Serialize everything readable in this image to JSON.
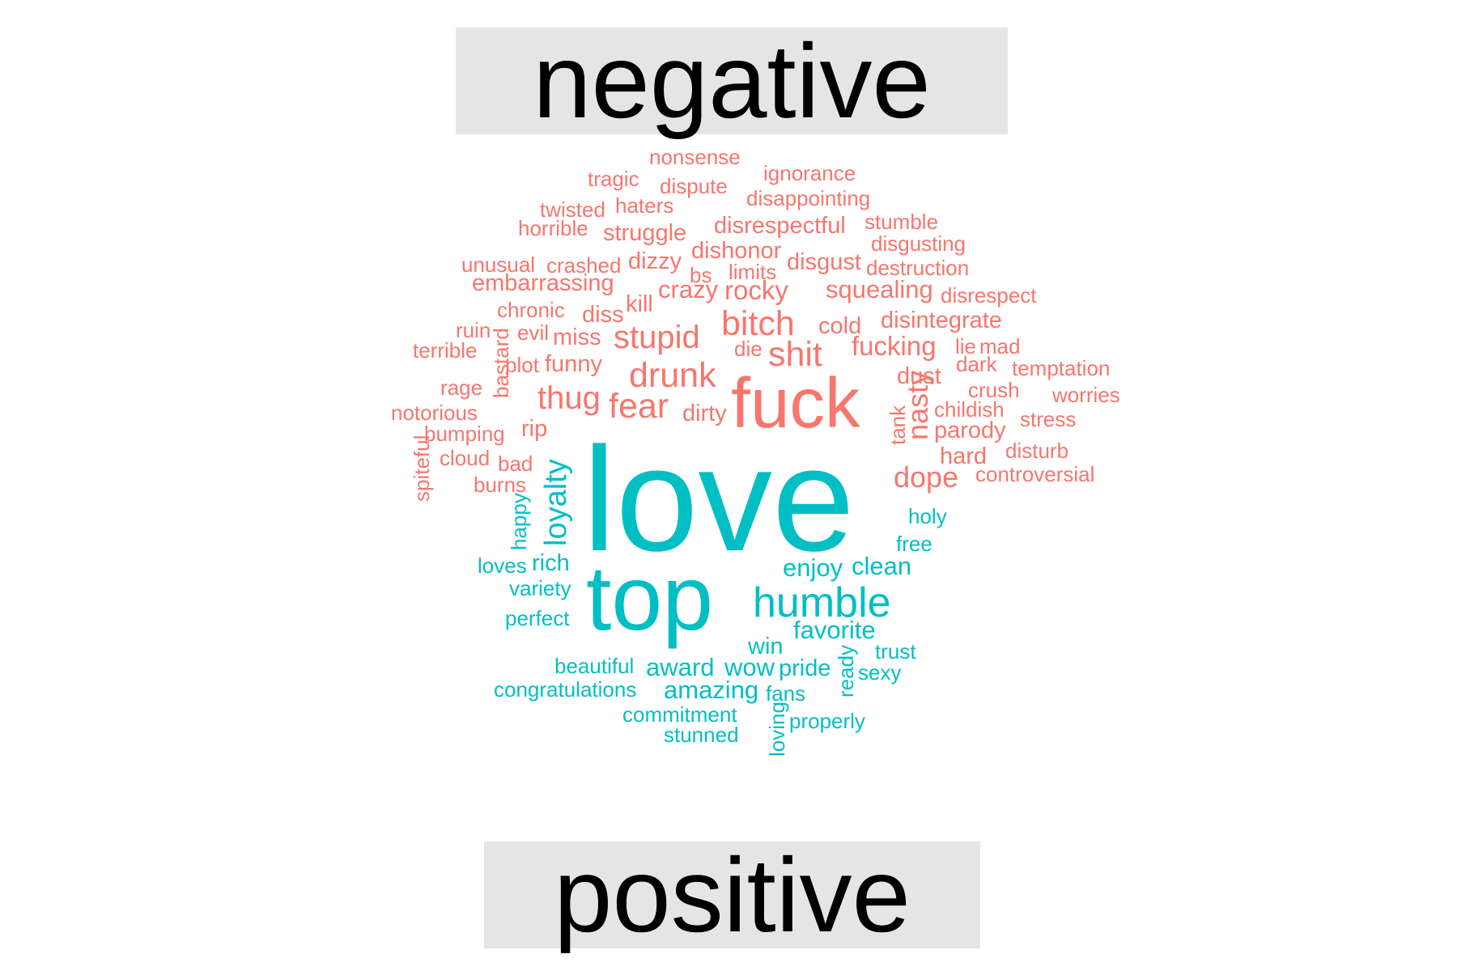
{
  "colors": {
    "negative": "#f8766d",
    "positive": "#00bfc4",
    "label_bg": "#e5e5e5"
  },
  "labels": {
    "negative": "negative",
    "positive": "positive"
  },
  "negative_words": [
    "nonsense",
    "tragic",
    "ignorance",
    "dispute",
    "twisted",
    "haters",
    "disappointing",
    "horrible",
    "struggle",
    "disrespectful",
    "stumble",
    "disgusting",
    "unusual",
    "crashed",
    "dizzy",
    "dishonor",
    "disgust",
    "destruction",
    "bs",
    "limits",
    "embarrassing",
    "squealing",
    "crazy",
    "rocky",
    "disrespect",
    "kill",
    "chronic",
    "diss",
    "bitch",
    "cold",
    "disintegrate",
    "ruin",
    "evil",
    "miss",
    "stupid",
    "terrible",
    "shit",
    "fucking",
    "lie",
    "mad",
    "die",
    "plot",
    "funny",
    "dark",
    "temptation",
    "bastard",
    "drunk",
    "rage",
    "dust",
    "crush",
    "worries",
    "fuck",
    "thug",
    "fear",
    "childish",
    "notorious",
    "dirty",
    "stress",
    "nasty",
    "parody",
    "bumping",
    "rip",
    "tank",
    "disturb",
    "cloud",
    "hard",
    "bad",
    "controversial",
    "burns",
    "dope",
    "spiteful"
  ],
  "positive_words": [
    "loyalty",
    "love",
    "holy",
    "happy",
    "free",
    "rich",
    "loves",
    "enjoy",
    "clean",
    "variety",
    "top",
    "humble",
    "perfect",
    "favorite",
    "win",
    "trust",
    "ready",
    "beautiful",
    "award",
    "wow",
    "pride",
    "sexy",
    "congratulations",
    "amazing",
    "fans",
    "commitment",
    "loving",
    "properly",
    "stunned"
  ]
}
